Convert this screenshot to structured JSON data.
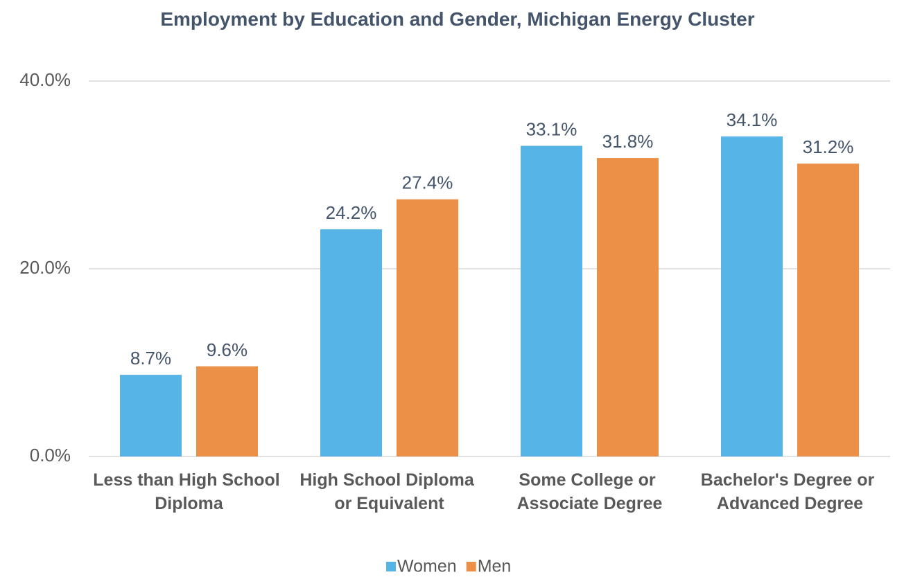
{
  "chart_data": {
    "type": "bar",
    "title": "Employment by Education and Gender, Michigan Energy Cluster",
    "categories": [
      "Less than High School Diploma",
      "High School Diploma or Equivalent",
      "Some College or Associate Degree",
      "Bachelor's Degree or Advanced Degree"
    ],
    "series": [
      {
        "name": "Women",
        "color": "#56b4e6",
        "values": [
          8.7,
          24.2,
          33.1,
          34.1
        ],
        "value_labels": [
          "8.7%",
          "24.2%",
          "33.1%",
          "34.1%"
        ]
      },
      {
        "name": "Men",
        "color": "#ec9047",
        "values": [
          9.6,
          27.4,
          31.8,
          31.2
        ],
        "value_labels": [
          "9.6%",
          "27.4%",
          "31.8%",
          "31.2%"
        ]
      }
    ],
    "ylim": [
      0,
      40
    ],
    "yticks": [
      {
        "value": 0,
        "label": "0.0%"
      },
      {
        "value": 20,
        "label": "20.0%"
      },
      {
        "value": 40,
        "label": "40.0%"
      }
    ],
    "grid": true,
    "legend": "bottom"
  }
}
